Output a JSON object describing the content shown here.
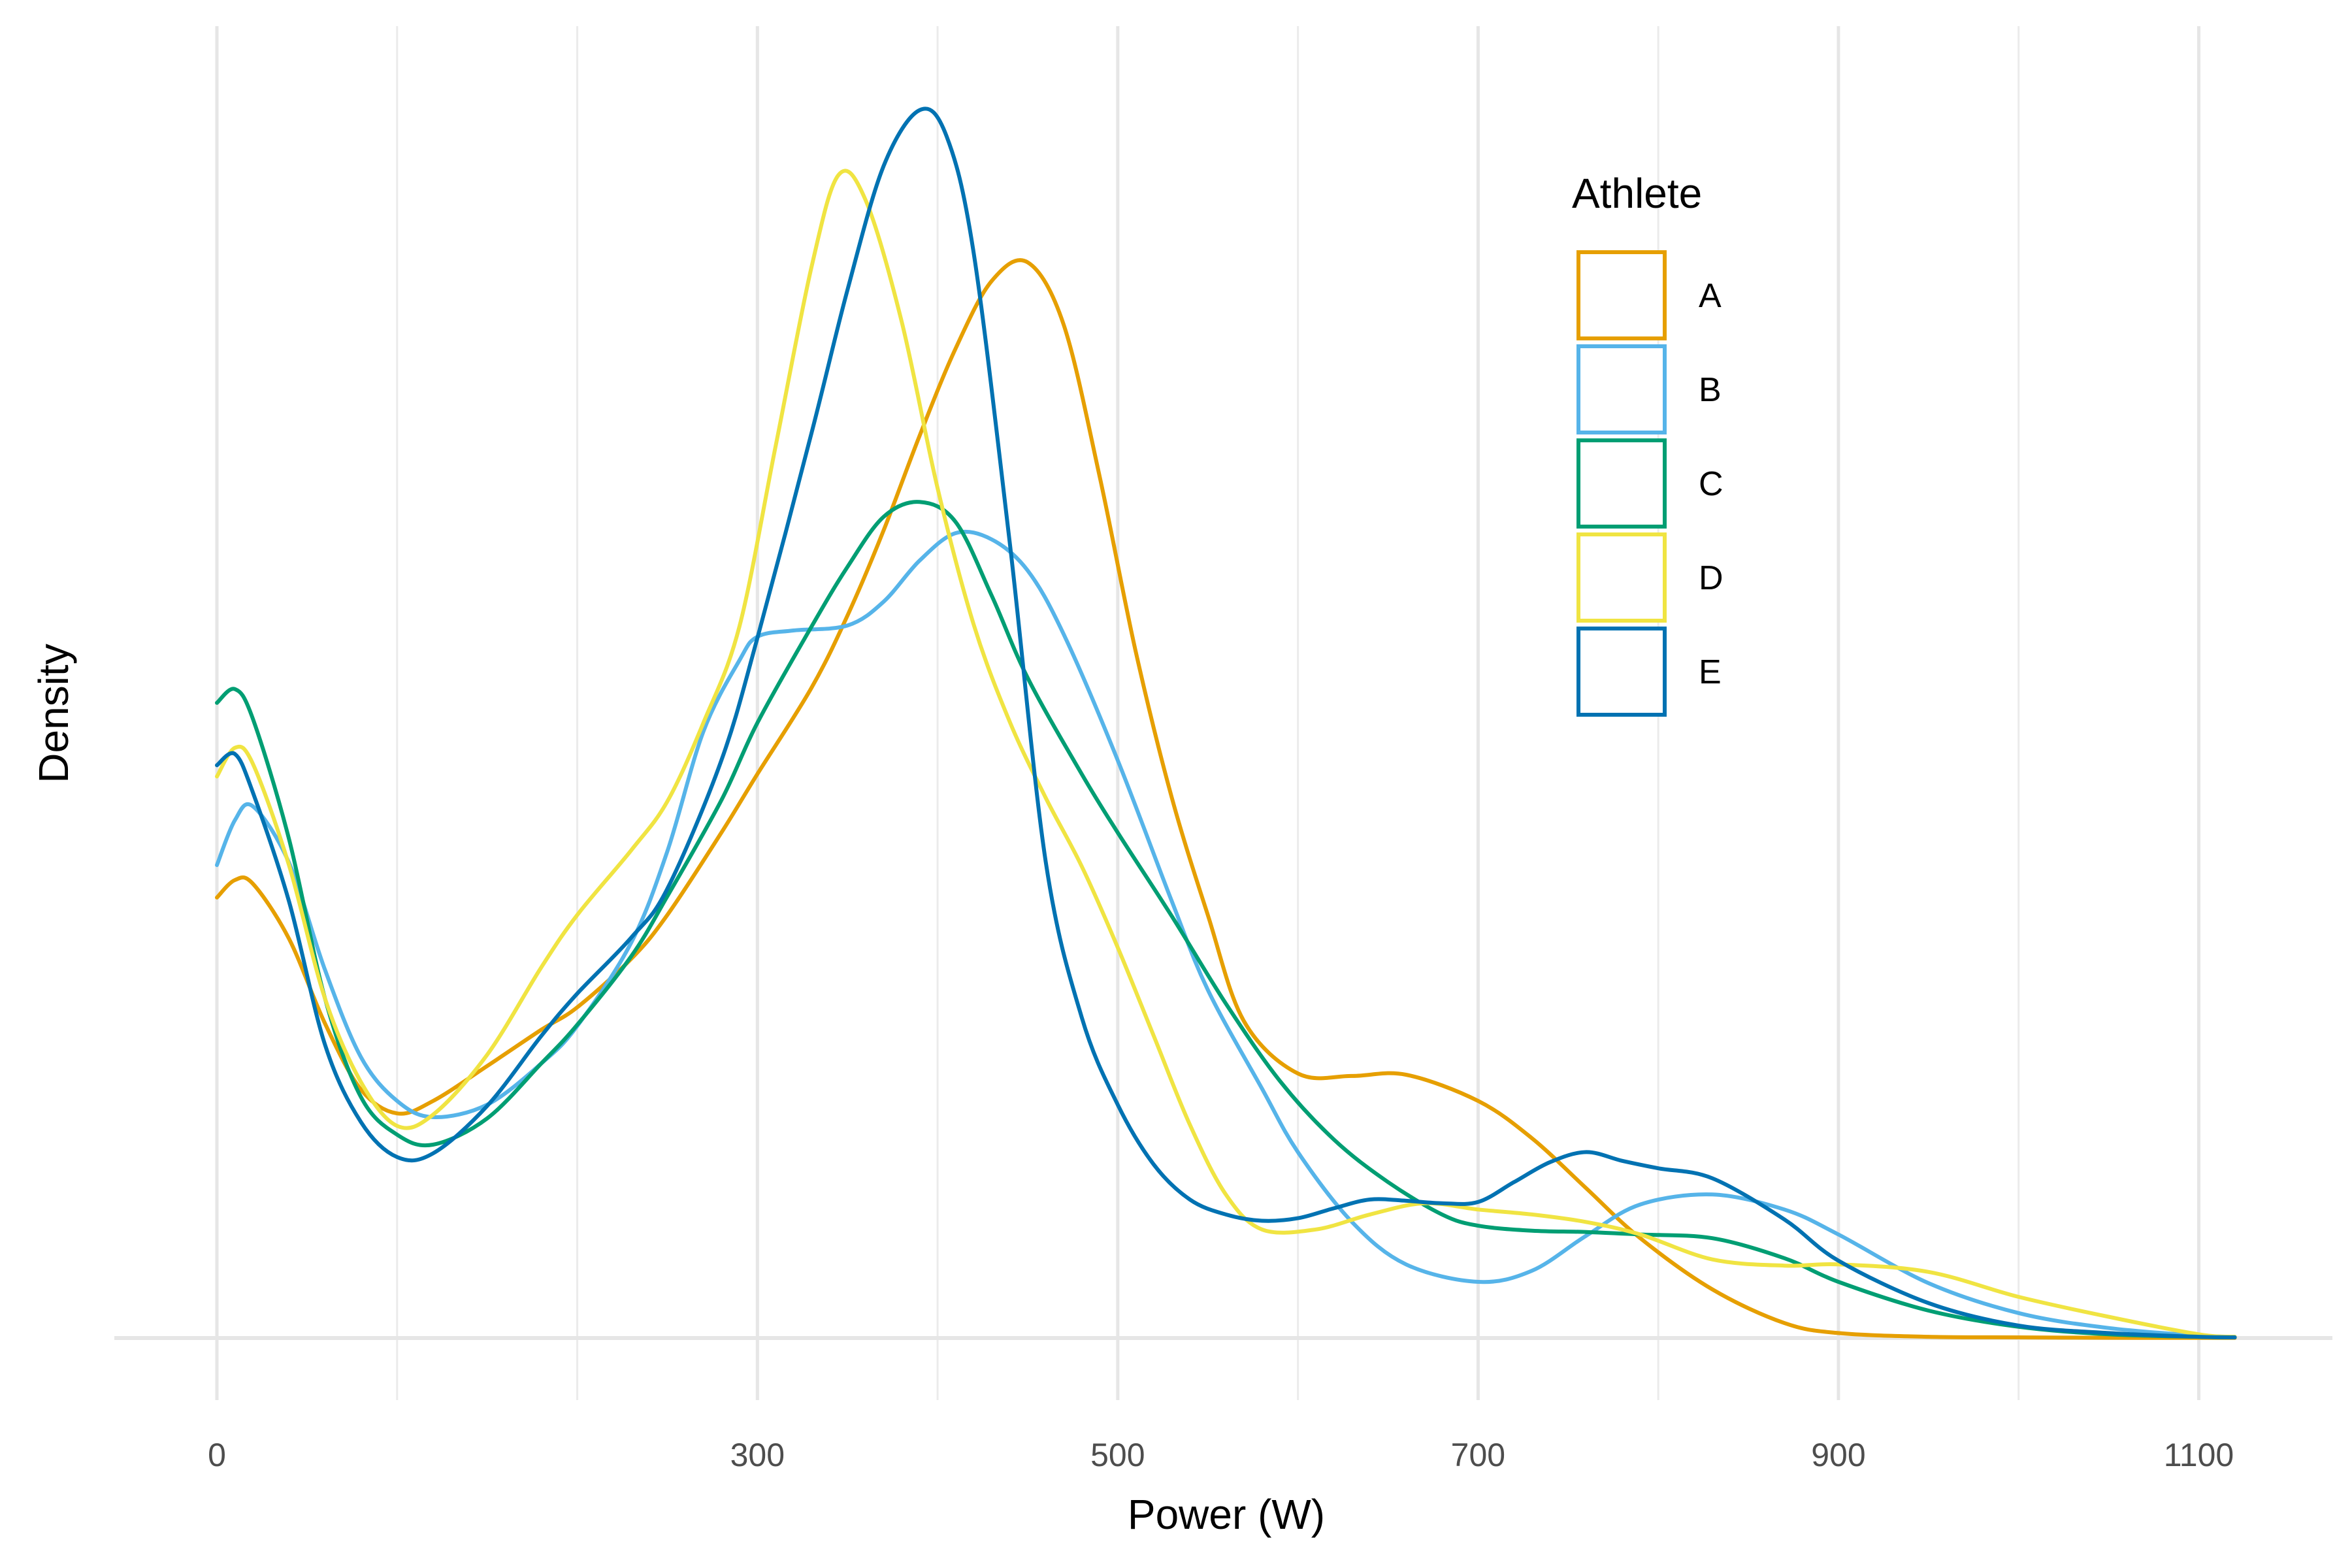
{
  "chart_data": {
    "type": "line",
    "subtype": "density",
    "title": "",
    "xlabel": "Power (W)",
    "ylabel": "Density",
    "xlim": [
      -10,
      1121
    ],
    "y_ticks_labeled": false,
    "x_ticks": [
      0,
      300,
      500,
      700,
      900,
      1100
    ],
    "x_minor_gridlines": [
      100,
      200,
      400,
      600,
      800,
      1000
    ],
    "grid": true,
    "legend": {
      "title": "Athlete",
      "position": "top-right"
    },
    "series": [
      {
        "name": "A",
        "color": "#E69F00",
        "x": [
          0,
          10,
          20,
          40,
          60,
          80,
          100,
          120,
          150,
          180,
          200,
          230,
          250,
          280,
          300,
          330,
          350,
          370,
          390,
          410,
          430,
          450,
          470,
          490,
          510,
          530,
          550,
          570,
          600,
          630,
          660,
          700,
          730,
          760,
          790,
          830,
          870,
          900,
          950,
          1000,
          1050,
          1100,
          1120
        ],
        "y": [
          0.353,
          0.367,
          0.364,
          0.32,
          0.252,
          0.199,
          0.18,
          0.19,
          0.218,
          0.247,
          0.265,
          0.304,
          0.339,
          0.405,
          0.452,
          0.521,
          0.579,
          0.647,
          0.723,
          0.793,
          0.847,
          0.862,
          0.812,
          0.69,
          0.55,
          0.433,
          0.339,
          0.254,
          0.212,
          0.21,
          0.211,
          0.19,
          0.16,
          0.12,
          0.08,
          0.039,
          0.012,
          0.004,
          0.001,
          0.0005,
          0.0002,
          0.0001,
          0.0001
        ]
      },
      {
        "name": "B",
        "color": "#56B4E9",
        "x": [
          0,
          10,
          20,
          40,
          60,
          80,
          100,
          120,
          150,
          180,
          200,
          230,
          250,
          270,
          290,
          300,
          320,
          350,
          370,
          390,
          410,
          430,
          450,
          470,
          500,
          530,
          550,
          580,
          600,
          630,
          660,
          700,
          730,
          760,
          790,
          830,
          870,
          900,
          950,
          1000,
          1050,
          1100,
          1120
        ],
        "y": [
          0.379,
          0.415,
          0.426,
          0.381,
          0.295,
          0.225,
          0.19,
          0.177,
          0.187,
          0.22,
          0.25,
          0.317,
          0.39,
          0.486,
          0.543,
          0.562,
          0.567,
          0.571,
          0.59,
          0.623,
          0.645,
          0.64,
          0.615,
          0.564,
          0.463,
          0.35,
          0.279,
          0.2,
          0.149,
          0.093,
          0.059,
          0.045,
          0.054,
          0.082,
          0.107,
          0.115,
          0.103,
          0.083,
          0.044,
          0.02,
          0.008,
          0.002,
          0.001
        ]
      },
      {
        "name": "C",
        "color": "#009E73",
        "x": [
          0,
          10,
          20,
          40,
          60,
          80,
          100,
          120,
          150,
          180,
          200,
          230,
          250,
          280,
          300,
          330,
          350,
          370,
          390,
          410,
          430,
          450,
          480,
          500,
          530,
          560,
          590,
          620,
          650,
          680,
          700,
          730,
          760,
          790,
          830,
          870,
          900,
          950,
          1000,
          1050,
          1100,
          1120
        ],
        "y": [
          0.509,
          0.52,
          0.496,
          0.4,
          0.272,
          0.193,
          0.163,
          0.155,
          0.176,
          0.22,
          0.251,
          0.306,
          0.354,
          0.431,
          0.493,
          0.57,
          0.618,
          0.658,
          0.67,
          0.654,
          0.595,
          0.529,
          0.452,
          0.405,
          0.338,
          0.268,
          0.206,
          0.159,
          0.125,
          0.099,
          0.09,
          0.086,
          0.085,
          0.083,
          0.08,
          0.064,
          0.045,
          0.022,
          0.009,
          0.003,
          0.001,
          0.0005
        ]
      },
      {
        "name": "D",
        "color": "#F0E442",
        "x": [
          0,
          10,
          20,
          40,
          60,
          80,
          100,
          120,
          150,
          180,
          200,
          230,
          250,
          270,
          290,
          310,
          330,
          345,
          360,
          380,
          400,
          420,
          440,
          460,
          480,
          500,
          520,
          540,
          560,
          580,
          610,
          640,
          670,
          700,
          730,
          760,
          790,
          830,
          870,
          900,
          950,
          1000,
          1050,
          1100,
          1120
        ],
        "y": [
          0.45,
          0.473,
          0.46,
          0.379,
          0.272,
          0.205,
          0.17,
          0.179,
          0.227,
          0.297,
          0.339,
          0.391,
          0.43,
          0.493,
          0.57,
          0.714,
          0.858,
          0.932,
          0.912,
          0.815,
          0.681,
          0.572,
          0.494,
          0.433,
          0.378,
          0.313,
          0.242,
          0.171,
          0.115,
          0.087,
          0.087,
          0.099,
          0.108,
          0.103,
          0.099,
          0.093,
          0.083,
          0.063,
          0.058,
          0.059,
          0.053,
          0.033,
          0.017,
          0.003,
          0.001
        ]
      },
      {
        "name": "E",
        "color": "#0072B2",
        "x": [
          0,
          10,
          20,
          40,
          60,
          80,
          100,
          120,
          150,
          180,
          200,
          230,
          250,
          280,
          300,
          330,
          350,
          370,
          390,
          405,
          420,
          440,
          460,
          480,
          500,
          520,
          540,
          560,
          580,
          600,
          620,
          640,
          660,
          680,
          700,
          720,
          740,
          760,
          780,
          800,
          830,
          870,
          900,
          950,
          1000,
          1050,
          1100,
          1120
        ],
        "y": [
          0.459,
          0.468,
          0.437,
          0.35,
          0.235,
          0.173,
          0.145,
          0.148,
          0.186,
          0.242,
          0.276,
          0.321,
          0.36,
          0.463,
          0.561,
          0.725,
          0.84,
          0.939,
          0.984,
          0.963,
          0.87,
          0.638,
          0.382,
          0.257,
          0.187,
          0.139,
          0.111,
          0.099,
          0.094,
          0.096,
          0.104,
          0.111,
          0.11,
          0.108,
          0.109,
          0.125,
          0.141,
          0.149,
          0.142,
          0.136,
          0.128,
          0.095,
          0.062,
          0.028,
          0.01,
          0.004,
          0.001,
          0.0005
        ]
      }
    ]
  }
}
